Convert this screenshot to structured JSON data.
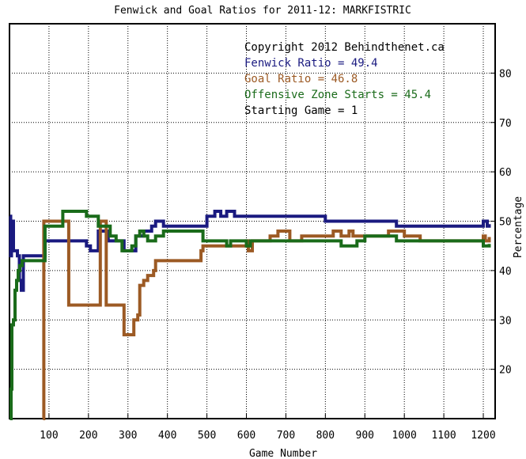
{
  "chart_data": {
    "type": "line",
    "title": "Fenwick and Goal Ratios for 2011-12: MARKFISTRIC",
    "xlabel": "Game Number",
    "ylabel": "Percentage",
    "xlim": [
      0,
      1230
    ],
    "ylim": [
      10,
      90
    ],
    "grid": true,
    "legend_position": "top-right",
    "x_ticks": [
      100,
      200,
      300,
      400,
      500,
      600,
      700,
      800,
      900,
      1000,
      1100,
      1200
    ],
    "y_ticks": [
      20,
      30,
      40,
      50,
      60,
      70,
      80
    ],
    "annotations": [
      {
        "text": "Copyright 2012 Behindthenet.ca",
        "color": "#000000"
      },
      {
        "text": "Fenwick Ratio = 49.4",
        "color": "#1a1a80"
      },
      {
        "text": "Goal Ratio = 46.8",
        "color": "#9c5a24"
      },
      {
        "text": "Offensive Zone Starts = 45.4",
        "color": "#1a6b1a"
      },
      {
        "text": "Starting Game = 1",
        "color": "#000000"
      }
    ],
    "series": [
      {
        "name": "Fenwick Ratio",
        "color": "#1a1a80",
        "points": [
          [
            1,
            51
          ],
          [
            3,
            43
          ],
          [
            5,
            50
          ],
          [
            10,
            44
          ],
          [
            20,
            43
          ],
          [
            25,
            38
          ],
          [
            30,
            36
          ],
          [
            35,
            43
          ],
          [
            50,
            43
          ],
          [
            85,
            43
          ],
          [
            90,
            46
          ],
          [
            115,
            46
          ],
          [
            125,
            46
          ],
          [
            180,
            46
          ],
          [
            195,
            45
          ],
          [
            205,
            44
          ],
          [
            215,
            44
          ],
          [
            225,
            48
          ],
          [
            245,
            48
          ],
          [
            250,
            46
          ],
          [
            280,
            46
          ],
          [
            290,
            44
          ],
          [
            300,
            44
          ],
          [
            310,
            44
          ],
          [
            320,
            47
          ],
          [
            340,
            48
          ],
          [
            360,
            49
          ],
          [
            370,
            50
          ],
          [
            390,
            49
          ],
          [
            420,
            49
          ],
          [
            440,
            49
          ],
          [
            460,
            49
          ],
          [
            480,
            49
          ],
          [
            490,
            49
          ],
          [
            500,
            51
          ],
          [
            520,
            52
          ],
          [
            535,
            51
          ],
          [
            550,
            52
          ],
          [
            570,
            51
          ],
          [
            610,
            51
          ],
          [
            640,
            51
          ],
          [
            660,
            51
          ],
          [
            700,
            51
          ],
          [
            740,
            51
          ],
          [
            780,
            51
          ],
          [
            800,
            50
          ],
          [
            830,
            50
          ],
          [
            860,
            50
          ],
          [
            900,
            50
          ],
          [
            940,
            50
          ],
          [
            960,
            50
          ],
          [
            980,
            49
          ],
          [
            1000,
            49
          ],
          [
            1020,
            49
          ],
          [
            1040,
            49
          ],
          [
            1060,
            49
          ],
          [
            1080,
            49
          ],
          [
            1100,
            49
          ],
          [
            1140,
            49
          ],
          [
            1160,
            49
          ],
          [
            1180,
            49
          ],
          [
            1200,
            50
          ],
          [
            1210,
            49
          ],
          [
            1215,
            49.4
          ]
        ]
      },
      {
        "name": "Goal Ratio",
        "color": "#9c5a24",
        "points": [
          [
            85,
            10
          ],
          [
            87,
            50
          ],
          [
            100,
            50
          ],
          [
            125,
            50
          ],
          [
            145,
            50
          ],
          [
            150,
            33
          ],
          [
            165,
            33
          ],
          [
            195,
            33
          ],
          [
            220,
            33
          ],
          [
            230,
            50
          ],
          [
            240,
            50
          ],
          [
            245,
            33
          ],
          [
            260,
            33
          ],
          [
            270,
            33
          ],
          [
            285,
            33
          ],
          [
            290,
            27
          ],
          [
            310,
            27
          ],
          [
            315,
            30
          ],
          [
            325,
            31
          ],
          [
            330,
            37
          ],
          [
            340,
            38
          ],
          [
            350,
            39
          ],
          [
            365,
            40
          ],
          [
            370,
            42
          ],
          [
            380,
            42
          ],
          [
            400,
            42
          ],
          [
            440,
            42
          ],
          [
            470,
            42
          ],
          [
            485,
            44
          ],
          [
            490,
            45
          ],
          [
            510,
            45
          ],
          [
            520,
            45
          ],
          [
            540,
            45
          ],
          [
            560,
            45
          ],
          [
            580,
            45
          ],
          [
            600,
            46
          ],
          [
            605,
            44
          ],
          [
            615,
            46
          ],
          [
            640,
            46
          ],
          [
            660,
            47
          ],
          [
            680,
            48
          ],
          [
            710,
            46
          ],
          [
            740,
            47
          ],
          [
            760,
            47
          ],
          [
            780,
            47
          ],
          [
            800,
            47
          ],
          [
            820,
            48
          ],
          [
            840,
            47
          ],
          [
            860,
            48
          ],
          [
            870,
            47
          ],
          [
            900,
            47
          ],
          [
            940,
            47
          ],
          [
            960,
            48
          ],
          [
            980,
            48
          ],
          [
            1000,
            47
          ],
          [
            1020,
            47
          ],
          [
            1040,
            46
          ],
          [
            1060,
            46
          ],
          [
            1080,
            46
          ],
          [
            1100,
            46
          ],
          [
            1140,
            46
          ],
          [
            1160,
            46
          ],
          [
            1180,
            46
          ],
          [
            1200,
            47
          ],
          [
            1205,
            46
          ],
          [
            1215,
            46.8
          ]
        ]
      },
      {
        "name": "Offensive Zone Starts",
        "color": "#1a6b1a",
        "points": [
          [
            1,
            10
          ],
          [
            4,
            16
          ],
          [
            6,
            29
          ],
          [
            10,
            30
          ],
          [
            14,
            36
          ],
          [
            18,
            38
          ],
          [
            22,
            40
          ],
          [
            26,
            41
          ],
          [
            32,
            42
          ],
          [
            50,
            42
          ],
          [
            80,
            42
          ],
          [
            88,
            42
          ],
          [
            90,
            49
          ],
          [
            125,
            49
          ],
          [
            135,
            52
          ],
          [
            160,
            52
          ],
          [
            180,
            52
          ],
          [
            195,
            51
          ],
          [
            210,
            51
          ],
          [
            225,
            49
          ],
          [
            240,
            49
          ],
          [
            255,
            47
          ],
          [
            270,
            46
          ],
          [
            285,
            44
          ],
          [
            300,
            44
          ],
          [
            310,
            45
          ],
          [
            320,
            47
          ],
          [
            330,
            48
          ],
          [
            340,
            47
          ],
          [
            350,
            46
          ],
          [
            360,
            46
          ],
          [
            370,
            47
          ],
          [
            390,
            48
          ],
          [
            420,
            48
          ],
          [
            450,
            48
          ],
          [
            480,
            48
          ],
          [
            490,
            46
          ],
          [
            500,
            46
          ],
          [
            530,
            46
          ],
          [
            550,
            45
          ],
          [
            560,
            46
          ],
          [
            570,
            46
          ],
          [
            580,
            46
          ],
          [
            590,
            46
          ],
          [
            600,
            45
          ],
          [
            610,
            46
          ],
          [
            620,
            46
          ],
          [
            660,
            46
          ],
          [
            680,
            46
          ],
          [
            720,
            46
          ],
          [
            760,
            46
          ],
          [
            780,
            46
          ],
          [
            800,
            46
          ],
          [
            820,
            46
          ],
          [
            840,
            45
          ],
          [
            860,
            45
          ],
          [
            880,
            46
          ],
          [
            900,
            47
          ],
          [
            920,
            47
          ],
          [
            940,
            47
          ],
          [
            960,
            47
          ],
          [
            980,
            46
          ],
          [
            1000,
            46
          ],
          [
            1020,
            46
          ],
          [
            1040,
            46
          ],
          [
            1060,
            46
          ],
          [
            1080,
            46
          ],
          [
            1100,
            46
          ],
          [
            1140,
            46
          ],
          [
            1160,
            46
          ],
          [
            1180,
            46
          ],
          [
            1200,
            45
          ],
          [
            1215,
            45.4
          ]
        ]
      }
    ]
  }
}
